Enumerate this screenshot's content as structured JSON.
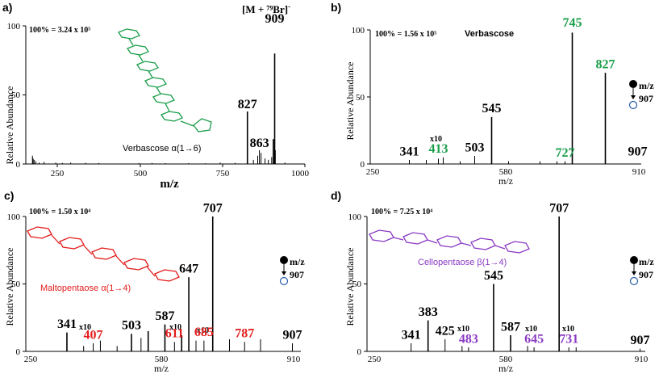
{
  "colors": {
    "black": "#000000",
    "green": "#1a9e4a",
    "red": "#e31b1b",
    "purple": "#8a3ac4"
  },
  "common": {
    "ylabel": "Relative Abundance",
    "legend_mz": "m/z",
    "legend_target": "907"
  },
  "chart_data": [
    {
      "type": "bar",
      "panel_label": "a)",
      "scale_note": "100% = 3.24 x 10⁵",
      "compound_name": "Verbascose α(1→6)",
      "ion_label_main": "[M + ⁷⁹Br]",
      "ion_label_charge": "-",
      "xlabel": "m/z",
      "xlim": [
        160,
        1000
      ],
      "ylim": [
        0,
        100
      ],
      "xticks": [
        "250",
        "500",
        "750",
        "1000"
      ],
      "yticks": [
        "0",
        "50",
        "100"
      ],
      "peaks": [
        {
          "x": 180,
          "y": 6
        },
        {
          "x": 182,
          "y": 4
        },
        {
          "x": 185,
          "y": 3
        },
        {
          "x": 190,
          "y": 2
        },
        {
          "x": 200,
          "y": 1
        },
        {
          "x": 215,
          "y": 1.5
        },
        {
          "x": 250,
          "y": 1
        },
        {
          "x": 270,
          "y": 0.8
        },
        {
          "x": 295,
          "y": 1
        },
        {
          "x": 340,
          "y": 0.8
        },
        {
          "x": 380,
          "y": 0.7
        },
        {
          "x": 500,
          "y": 0.6
        },
        {
          "x": 540,
          "y": 0.7
        },
        {
          "x": 580,
          "y": 0.6
        },
        {
          "x": 650,
          "y": 0.6
        },
        {
          "x": 700,
          "y": 0.5
        },
        {
          "x": 745,
          "y": 1
        },
        {
          "x": 790,
          "y": 0.8
        },
        {
          "x": 827,
          "y": 38
        },
        {
          "x": 845,
          "y": 3
        },
        {
          "x": 858,
          "y": 6
        },
        {
          "x": 863,
          "y": 10
        },
        {
          "x": 868,
          "y": 8
        },
        {
          "x": 880,
          "y": 4
        },
        {
          "x": 890,
          "y": 3
        },
        {
          "x": 900,
          "y": 5
        },
        {
          "x": 905,
          "y": 18
        },
        {
          "x": 909,
          "y": 80
        },
        {
          "x": 911,
          "y": 10
        },
        {
          "x": 940,
          "y": 1
        }
      ],
      "labels": [
        {
          "text": "827",
          "x": 827,
          "y": 38,
          "color": "black"
        },
        {
          "text": "863",
          "x": 863,
          "y": 10,
          "color": "black"
        },
        {
          "text": "909",
          "x": 909,
          "y": 100,
          "color": "black"
        }
      ]
    },
    {
      "type": "bar",
      "panel_label": "b)",
      "scale_note": "100% = 1.56 x 10⁵",
      "compound_name": "Verbascose",
      "xlabel": "m/z",
      "xlim": [
        250,
        910
      ],
      "ylim": [
        0,
        100
      ],
      "xticks": [
        "250",
        "580",
        "910"
      ],
      "yticks": [
        "0",
        "50",
        "100"
      ],
      "x10_label": "x10",
      "peaks": [
        {
          "x": 341,
          "y": 3
        },
        {
          "x": 383,
          "y": 3
        },
        {
          "x": 413,
          "y": 4
        },
        {
          "x": 425,
          "y": 5
        },
        {
          "x": 467,
          "y": 2
        },
        {
          "x": 503,
          "y": 6
        },
        {
          "x": 545,
          "y": 35
        },
        {
          "x": 587,
          "y": 2
        },
        {
          "x": 665,
          "y": 2
        },
        {
          "x": 707,
          "y": 2
        },
        {
          "x": 727,
          "y": 2
        },
        {
          "x": 745,
          "y": 98
        },
        {
          "x": 827,
          "y": 68
        }
      ],
      "labels": [
        {
          "text": "341",
          "x": 341,
          "y": 4,
          "color": "black"
        },
        {
          "text": "413",
          "x": 413,
          "y": 6,
          "color": "green"
        },
        {
          "text": "503",
          "x": 503,
          "y": 7,
          "color": "black"
        },
        {
          "text": "545",
          "x": 545,
          "y": 36,
          "color": "black"
        },
        {
          "text": "727",
          "x": 727,
          "y": 3,
          "color": "green"
        },
        {
          "text": "745",
          "x": 745,
          "y": 100,
          "color": "green"
        },
        {
          "text": "827",
          "x": 827,
          "y": 69,
          "color": "green"
        },
        {
          "text": "907",
          "x": 907,
          "y": 4,
          "color": "black"
        }
      ]
    },
    {
      "type": "bar",
      "panel_label": "c)",
      "scale_note": "100% = 1.50 x 10⁴",
      "compound_name": "Maltopentaose α(1→4)",
      "xlabel": "m/z",
      "xlim": [
        250,
        910
      ],
      "ylim": [
        0,
        100
      ],
      "xticks": [
        "250",
        "580",
        "910"
      ],
      "yticks": [
        "0",
        "50",
        "100"
      ],
      "x10_label": "x10",
      "peaks": [
        {
          "x": 341,
          "y": 14
        },
        {
          "x": 383,
          "y": 4
        },
        {
          "x": 407,
          "y": 6
        },
        {
          "x": 425,
          "y": 8
        },
        {
          "x": 467,
          "y": 4
        },
        {
          "x": 503,
          "y": 13
        },
        {
          "x": 527,
          "y": 10
        },
        {
          "x": 545,
          "y": 15
        },
        {
          "x": 587,
          "y": 20
        },
        {
          "x": 611,
          "y": 7
        },
        {
          "x": 629,
          "y": 12
        },
        {
          "x": 647,
          "y": 55
        },
        {
          "x": 665,
          "y": 8
        },
        {
          "x": 685,
          "y": 8
        },
        {
          "x": 707,
          "y": 100
        },
        {
          "x": 749,
          "y": 9
        },
        {
          "x": 787,
          "y": 7
        },
        {
          "x": 827,
          "y": 9
        },
        {
          "x": 907,
          "y": 6
        }
      ],
      "labels": [
        {
          "text": "341",
          "x": 341,
          "y": 15,
          "color": "black"
        },
        {
          "text": "407",
          "x": 407,
          "y": 7,
          "color": "red"
        },
        {
          "text": "503",
          "x": 503,
          "y": 14,
          "color": "black"
        },
        {
          "text": "587",
          "x": 587,
          "y": 21,
          "color": "black"
        },
        {
          "text": "611",
          "x": 611,
          "y": 8,
          "color": "red"
        },
        {
          "text": "647",
          "x": 647,
          "y": 56,
          "color": "black"
        },
        {
          "text": "685",
          "x": 685,
          "y": 9,
          "color": "red"
        },
        {
          "text": "707",
          "x": 707,
          "y": 101,
          "color": "black"
        },
        {
          "text": "787",
          "x": 787,
          "y": 8,
          "color": "red"
        },
        {
          "text": "907",
          "x": 907,
          "y": 7,
          "color": "black"
        }
      ]
    },
    {
      "type": "bar",
      "panel_label": "d)",
      "scale_note": "100% = 7.25 x 10⁴",
      "compound_name": "Cellopentaose β(1→4)",
      "xlabel": "m/z",
      "xlim": [
        250,
        910
      ],
      "ylim": [
        0,
        100
      ],
      "xticks": [
        "250",
        "580",
        "910"
      ],
      "yticks": [
        "0",
        "50",
        "100"
      ],
      "x10_label": "x10",
      "peaks": [
        {
          "x": 341,
          "y": 6
        },
        {
          "x": 383,
          "y": 23
        },
        {
          "x": 425,
          "y": 9
        },
        {
          "x": 467,
          "y": 4
        },
        {
          "x": 483,
          "y": 3
        },
        {
          "x": 545,
          "y": 50
        },
        {
          "x": 587,
          "y": 12
        },
        {
          "x": 629,
          "y": 4
        },
        {
          "x": 645,
          "y": 3
        },
        {
          "x": 707,
          "y": 100
        },
        {
          "x": 731,
          "y": 3
        },
        {
          "x": 749,
          "y": 3
        },
        {
          "x": 907,
          "y": 2
        }
      ],
      "labels": [
        {
          "text": "341",
          "x": 341,
          "y": 7,
          "color": "black"
        },
        {
          "text": "383",
          "x": 383,
          "y": 24,
          "color": "black"
        },
        {
          "text": "425",
          "x": 425,
          "y": 10,
          "color": "black"
        },
        {
          "text": "483",
          "x": 483,
          "y": 4,
          "color": "purple"
        },
        {
          "text": "545",
          "x": 545,
          "y": 51,
          "color": "black"
        },
        {
          "text": "587",
          "x": 587,
          "y": 13,
          "color": "black"
        },
        {
          "text": "645",
          "x": 645,
          "y": 4,
          "color": "purple"
        },
        {
          "text": "707",
          "x": 707,
          "y": 101,
          "color": "black"
        },
        {
          "text": "731",
          "x": 731,
          "y": 4,
          "color": "purple"
        },
        {
          "text": "907",
          "x": 907,
          "y": 3,
          "color": "black"
        }
      ]
    }
  ]
}
